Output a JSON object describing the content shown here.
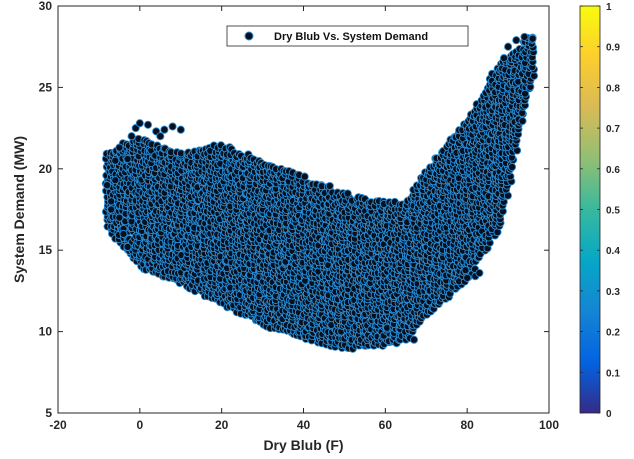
{
  "chart_data": {
    "type": "scatter",
    "title": "",
    "xlabel": "Dry Blub (F)",
    "ylabel": "System Demand (MW)",
    "xlim": [
      -20,
      100
    ],
    "ylim": [
      5,
      30
    ],
    "xticks": [
      -20,
      0,
      20,
      40,
      60,
      80,
      100
    ],
    "yticks": [
      5,
      10,
      15,
      20,
      25,
      30
    ],
    "grid": false,
    "legend": {
      "position": "top-center",
      "entries": [
        "Dry Blub Vs. System Demand"
      ]
    },
    "colorbar": {
      "range": [
        0,
        1
      ],
      "ticks": [
        "0",
        "0.1",
        "0.2",
        "0.3",
        "0.4",
        "0.5",
        "0.6",
        "0.7",
        "0.8",
        "0.9",
        "1"
      ],
      "colormap": "parula"
    },
    "marker": {
      "face_color": "#06101e",
      "edge_color": "#2a8fd8"
    },
    "series": [
      {
        "name": "Dry Blub Vs. System Demand",
        "envelope": {
          "x": [
            -8,
            0,
            10,
            20,
            30,
            40,
            50,
            60,
            65,
            70,
            80,
            88,
            96
          ],
          "y_min": [
            16.5,
            14.0,
            13.0,
            11.8,
            10.5,
            9.6,
            9.0,
            9.2,
            9.6,
            11.0,
            13.3,
            16.5,
            25.8
          ],
          "y_max": [
            21.0,
            22.0,
            21.0,
            21.5,
            20.5,
            19.5,
            18.5,
            18.0,
            18.0,
            20.0,
            23.0,
            26.5,
            28.2
          ]
        },
        "outliers": [
          [
            -7,
            18.0
          ],
          [
            -6,
            19.3
          ],
          [
            -5,
            17.0
          ],
          [
            -4,
            16.3
          ],
          [
            -3,
            20.6
          ],
          [
            -2,
            22.0
          ],
          [
            -1,
            22.5
          ],
          [
            0,
            22.8
          ],
          [
            2,
            22.7
          ],
          [
            4,
            22.3
          ],
          [
            5,
            22.0
          ],
          [
            6,
            22.4
          ],
          [
            8,
            22.6
          ],
          [
            10,
            22.4
          ],
          [
            -6,
            20.5
          ],
          [
            -5,
            21.3
          ],
          [
            -4,
            16.0
          ],
          [
            -3,
            15.2
          ],
          [
            -8,
            19.0
          ],
          [
            -7,
            17.5
          ],
          [
            94,
            28.1
          ],
          [
            96,
            28.0
          ],
          [
            92,
            27.9
          ],
          [
            90,
            27.5
          ],
          [
            89,
            26.8
          ],
          [
            82,
            13.4
          ],
          [
            83,
            13.6
          ],
          [
            80,
            13.3
          ],
          [
            66,
            9.6
          ],
          [
            67,
            9.5
          ]
        ]
      }
    ]
  }
}
